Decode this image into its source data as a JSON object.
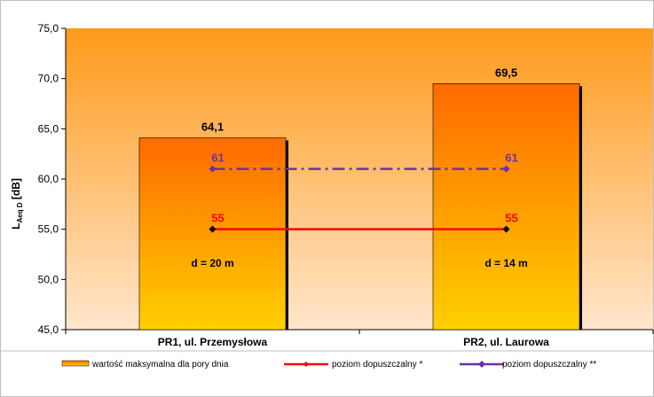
{
  "chart_data": {
    "type": "bar",
    "categories": [
      "PR1, ul. Przemysłowa",
      "PR2, ul. Laurowa"
    ],
    "values": [
      64.1,
      69.5
    ],
    "value_labels": [
      "64,1",
      "69,5"
    ],
    "bar_notes": [
      "d = 20 m",
      "d = 14 m"
    ],
    "ylabel": "L",
    "ylabel_subscript": "Aeq D",
    "ylabel_unit": " [dB]",
    "ylim": [
      45.0,
      75.0
    ],
    "yticks": [
      {
        "value": 45.0,
        "label": "45,0"
      },
      {
        "value": 50.0,
        "label": "50,0"
      },
      {
        "value": 55.0,
        "label": "55,0"
      },
      {
        "value": 60.0,
        "label": "60,0"
      },
      {
        "value": 65.0,
        "label": "65,0"
      },
      {
        "value": 70.0,
        "label": "70,0"
      },
      {
        "value": 75.0,
        "label": "75,0"
      }
    ],
    "grid": false,
    "legend_position": "bottom",
    "series": [
      {
        "name": "wartość maksymalna dla pory dnia",
        "kind": "bar",
        "values": [
          64.1,
          69.5
        ]
      },
      {
        "name": "poziom dopuszczalny *",
        "kind": "line",
        "values": [
          55,
          55
        ],
        "labels": [
          "55",
          "55"
        ],
        "color": "#ff0000",
        "dash": "solid"
      },
      {
        "name": "poziom dopuszczalny **",
        "kind": "line",
        "values": [
          61,
          61
        ],
        "labels": [
          "61",
          "61"
        ],
        "color": "#7030a0",
        "dash": "dashdot"
      }
    ],
    "colors": {
      "bar_top": "#ff6a00",
      "bar_bottom": "#ffd000",
      "plot_top": "#ff9a1a",
      "plot_bottom": "#ffe6cc",
      "limit1": "#ff0000",
      "limit2": "#7030a0"
    }
  }
}
